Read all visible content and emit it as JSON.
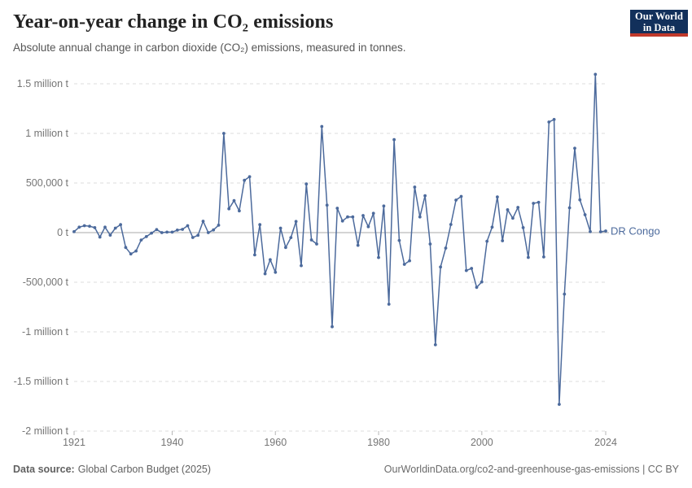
{
  "header": {
    "title": "Year-on-year change in CO₂ emissions",
    "subtitle": "Absolute annual change in carbon dioxide (CO₂) emissions, measured in tonnes.",
    "logo": {
      "line1": "Our World",
      "line2": "in Data"
    }
  },
  "chart_data": {
    "type": "line",
    "entity_label": "DR Congo",
    "start_year": 1921,
    "end_year": 2024,
    "unit": "t",
    "x": [
      1921,
      1922,
      1923,
      1924,
      1925,
      1926,
      1927,
      1928,
      1929,
      1930,
      1931,
      1932,
      1933,
      1934,
      1935,
      1936,
      1937,
      1938,
      1939,
      1940,
      1941,
      1942,
      1943,
      1944,
      1945,
      1946,
      1947,
      1948,
      1949,
      1950,
      1951,
      1952,
      1953,
      1954,
      1955,
      1956,
      1957,
      1958,
      1959,
      1960,
      1961,
      1962,
      1963,
      1964,
      1965,
      1966,
      1967,
      1968,
      1969,
      1970,
      1971,
      1972,
      1973,
      1974,
      1975,
      1976,
      1977,
      1978,
      1979,
      1980,
      1981,
      1982,
      1983,
      1984,
      1985,
      1986,
      1987,
      1988,
      1989,
      1990,
      1991,
      1992,
      1993,
      1994,
      1995,
      1996,
      1997,
      1998,
      1999,
      2000,
      2001,
      2002,
      2003,
      2004,
      2005,
      2006,
      2007,
      2008,
      2009,
      2010,
      2011,
      2012,
      2013,
      2014,
      2015,
      2016,
      2017,
      2018,
      2019,
      2020,
      2021,
      2022,
      2023,
      2024
    ],
    "values": [
      10000,
      55000,
      70000,
      65000,
      50000,
      -45000,
      55000,
      -25000,
      45000,
      80000,
      -150000,
      -215000,
      -185000,
      -75000,
      -40000,
      -5000,
      30000,
      0,
      5000,
      5000,
      25000,
      33000,
      70000,
      -49000,
      -27000,
      115000,
      0,
      27000,
      75000,
      1000000,
      240000,
      322000,
      219000,
      527000,
      563000,
      -225000,
      80000,
      -415000,
      -273000,
      -400000,
      45000,
      -150000,
      -50000,
      112000,
      -333000,
      490000,
      -74000,
      -115000,
      1070000,
      276000,
      -948000,
      246000,
      117000,
      158000,
      158000,
      -128000,
      172000,
      60000,
      194000,
      -251000,
      268000,
      -721000,
      937000,
      -79000,
      -320000,
      -284000,
      459000,
      158000,
      372000,
      -115000,
      -1130000,
      -347000,
      -156000,
      82000,
      328000,
      365000,
      -382000,
      -361000,
      -552000,
      -497000,
      -87000,
      55000,
      360000,
      -82000,
      230000,
      145000,
      254000,
      50000,
      -250000,
      295000,
      305000,
      -245000,
      1115000,
      1140000,
      -1730000,
      -620000,
      250000,
      850000,
      330000,
      180000,
      10000,
      1595000,
      8000,
      16000
    ],
    "yticks": [
      {
        "value": 1500000,
        "label": "1.5 million t"
      },
      {
        "value": 1000000,
        "label": "1 million t"
      },
      {
        "value": 500000,
        "label": "500,000 t"
      },
      {
        "value": 0,
        "label": "0 t"
      },
      {
        "value": -500000,
        "label": "-500,000 t"
      },
      {
        "value": -1000000,
        "label": "-1 million t"
      },
      {
        "value": -1500000,
        "label": "-1.5 million t"
      },
      {
        "value": -2000000,
        "label": "-2 million t"
      }
    ],
    "xticks": [
      1921,
      1940,
      1960,
      1980,
      2000,
      2024
    ],
    "ylim": [
      -2000000,
      1600000
    ],
    "grid": true,
    "line_color": "#4C6A9C",
    "axis_text_color": "#757575",
    "gridline_color": "#dcdcdc",
    "zero_line_color": "#a8a8a8"
  },
  "footer": {
    "source_label": "Data source:",
    "source_value": "Global Carbon Budget (2025)",
    "right_text": "OurWorldinData.org/co2-and-greenhouse-gas-emissions | CC BY"
  }
}
